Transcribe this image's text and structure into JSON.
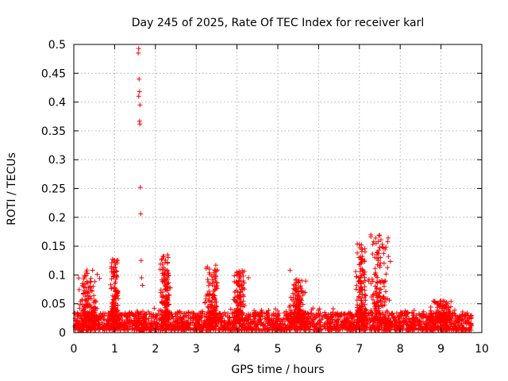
{
  "chart_data": {
    "type": "scatter",
    "title": "Day 245 of 2025, Rate Of TEC Index for receiver karl",
    "xlabel": "GPS time / hours",
    "ylabel": "ROTI / TECUs",
    "xlim": [
      0,
      10
    ],
    "ylim": [
      0,
      0.5
    ],
    "x_ticks": [
      "0",
      "1",
      "2",
      "3",
      "4",
      "5",
      "6",
      "7",
      "8",
      "9",
      "10"
    ],
    "y_ticks": [
      "0",
      "0.05",
      "0.1",
      "0.15",
      "0.2",
      "0.25",
      "0.3",
      "0.35",
      "0.4",
      "0.45",
      "0.5"
    ],
    "grid": true,
    "marker": "plus",
    "series_color": "#ff0000",
    "data_end_hour": 9.75,
    "baseline": {
      "min": 0.004,
      "max": 0.035,
      "note": "dense band of points near zero across 0-9.75 h"
    },
    "clusters": [
      {
        "center": 0.35,
        "spread": 0.3,
        "peak": 0.11
      },
      {
        "center": 1.0,
        "spread": 0.1,
        "peak": 0.13
      },
      {
        "center": 2.25,
        "spread": 0.15,
        "peak": 0.135
      },
      {
        "center": 3.4,
        "spread": 0.2,
        "peak": 0.115
      },
      {
        "center": 4.05,
        "spread": 0.15,
        "peak": 0.108
      },
      {
        "center": 5.5,
        "spread": 0.2,
        "peak": 0.095
      },
      {
        "center": 7.05,
        "spread": 0.15,
        "peak": 0.155
      },
      {
        "center": 7.5,
        "spread": 0.3,
        "peak": 0.17
      },
      {
        "center": 9.0,
        "spread": 0.3,
        "peak": 0.055
      }
    ],
    "spikes": [
      {
        "x": 1.59,
        "y": 0.493
      },
      {
        "x": 1.58,
        "y": 0.485
      },
      {
        "x": 1.6,
        "y": 0.44
      },
      {
        "x": 1.61,
        "y": 0.418
      },
      {
        "x": 1.59,
        "y": 0.41
      },
      {
        "x": 1.62,
        "y": 0.395
      },
      {
        "x": 1.61,
        "y": 0.367
      },
      {
        "x": 1.62,
        "y": 0.362
      },
      {
        "x": 1.63,
        "y": 0.252
      },
      {
        "x": 1.64,
        "y": 0.206
      },
      {
        "x": 1.65,
        "y": 0.125
      },
      {
        "x": 1.66,
        "y": 0.095
      },
      {
        "x": 1.68,
        "y": 0.082
      },
      {
        "x": 7.0,
        "y": 0.153
      },
      {
        "x": 7.05,
        "y": 0.152
      },
      {
        "x": 7.48,
        "y": 0.168
      },
      {
        "x": 7.5,
        "y": 0.148
      },
      {
        "x": 7.52,
        "y": 0.13
      },
      {
        "x": 5.3,
        "y": 0.108
      },
      {
        "x": 4.28,
        "y": 0.095
      },
      {
        "x": 2.3,
        "y": 0.135
      },
      {
        "x": 3.48,
        "y": 0.117
      },
      {
        "x": 1.05,
        "y": 0.125
      }
    ]
  }
}
